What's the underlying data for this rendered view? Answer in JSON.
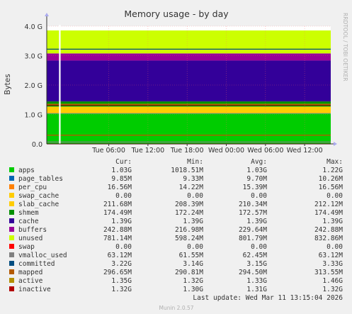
{
  "chart_data": {
    "type": "area",
    "title": "Memory usage - by day",
    "ylabel": "Bytes",
    "side_label": "RRDTOOL / TOBI OETIKER",
    "ylim": [
      0,
      4.0
    ],
    "y_unit": "G",
    "y_ticks": [
      "0.0",
      "1.0 G",
      "2.0 G",
      "3.0 G",
      "4.0 G"
    ],
    "y_tick_values": [
      0,
      1,
      2,
      3,
      4
    ],
    "x_ticks": [
      "Tue 06:00",
      "Tue 12:00",
      "Tue 18:00",
      "Wed 00:00",
      "Wed 06:00",
      "Wed 12:00"
    ],
    "x_range_hours": [
      -9.5,
      34.0
    ],
    "x_tick_hours": [
      0,
      6,
      12,
      18,
      24,
      30
    ],
    "columns": [
      "Cur:",
      "Min:",
      "Avg:",
      "Max:"
    ],
    "stack_order": [
      "apps",
      "page_tables",
      "per_cpu",
      "swap_cache",
      "slab_cache",
      "shmem",
      "cache",
      "buffers",
      "unused"
    ],
    "series": [
      {
        "name": "apps",
        "color": "#00cc00",
        "stacked": true,
        "value_g": 1.03,
        "cur": "1.03G",
        "min": "1018.51M",
        "avg": "1.03G",
        "max": "1.22G"
      },
      {
        "name": "page_tables",
        "color": "#0066b3",
        "stacked": true,
        "value_g": 0.0099,
        "cur": "9.85M",
        "min": "9.33M",
        "avg": "9.70M",
        "max": "10.26M"
      },
      {
        "name": "per_cpu",
        "color": "#ff8000",
        "stacked": true,
        "value_g": 0.0166,
        "cur": "16.56M",
        "min": "14.22M",
        "avg": "15.39M",
        "max": "16.56M"
      },
      {
        "name": "swap_cache",
        "color": "#ffcc00",
        "stacked": true,
        "value_g": 0.0,
        "cur": "0.00",
        "min": "0.00",
        "avg": "0.00",
        "max": "0.00"
      },
      {
        "name": "slab_cache",
        "color": "#ffcc00",
        "stacked": true,
        "value_g": 0.212,
        "cur": "211.68M",
        "min": "208.39M",
        "avg": "210.34M",
        "max": "212.12M"
      },
      {
        "name": "shmem",
        "color": "#008f00",
        "stacked": true,
        "value_g": 0.1745,
        "cur": "174.49M",
        "min": "172.24M",
        "avg": "172.57M",
        "max": "174.49M"
      },
      {
        "name": "cache",
        "color": "#330099",
        "stacked": true,
        "value_g": 1.39,
        "cur": "1.39G",
        "min": "1.39G",
        "avg": "1.39G",
        "max": "1.39G"
      },
      {
        "name": "buffers",
        "color": "#990099",
        "stacked": true,
        "value_g": 0.243,
        "cur": "242.88M",
        "min": "216.98M",
        "avg": "229.64M",
        "max": "242.88M"
      },
      {
        "name": "unused",
        "color": "#ccff00",
        "stacked": true,
        "value_g": 0.781,
        "cur": "781.14M",
        "min": "598.24M",
        "avg": "801.79M",
        "max": "832.86M"
      },
      {
        "name": "swap",
        "color": "#ff0000",
        "stacked": false,
        "value_g": 0.0,
        "cur": "0.00",
        "min": "0.00",
        "avg": "0.00",
        "max": "0.00"
      },
      {
        "name": "vmalloc_used",
        "color": "#808080",
        "stacked": false,
        "value_g": 0.0631,
        "cur": "63.12M",
        "min": "61.55M",
        "avg": "62.45M",
        "max": "63.12M"
      },
      {
        "name": "committed",
        "color": "#004d80",
        "stacked": false,
        "value_g": 3.22,
        "cur": "3.22G",
        "min": "3.14G",
        "avg": "3.15G",
        "max": "3.33G"
      },
      {
        "name": "mapped",
        "color": "#b35a00",
        "stacked": false,
        "value_g": 0.2966,
        "cur": "296.65M",
        "min": "290.81M",
        "avg": "294.50M",
        "max": "313.55M"
      },
      {
        "name": "active",
        "color": "#b38f00",
        "stacked": false,
        "value_g": 1.35,
        "cur": "1.35G",
        "min": "1.32G",
        "avg": "1.33G",
        "max": "1.46G"
      },
      {
        "name": "inactive",
        "color": "#b30000",
        "stacked": false,
        "value_g": 1.32,
        "cur": "1.32G",
        "min": "1.30G",
        "avg": "1.31G",
        "max": "1.32G"
      }
    ],
    "last_update": "Last update: Wed Mar 11 13:15:04 2026",
    "footer": "Munin 2.0.57"
  }
}
